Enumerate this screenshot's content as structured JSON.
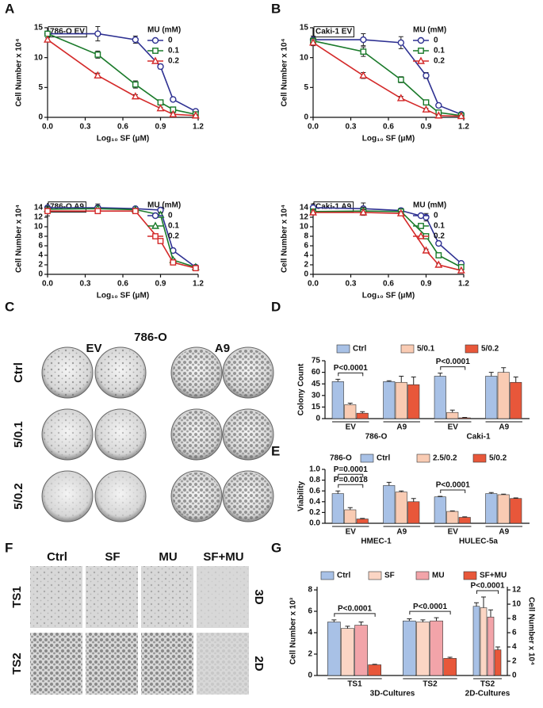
{
  "panel_labels": [
    "A",
    "B",
    "C",
    "D",
    "E",
    "F",
    "G"
  ],
  "panel_c": {
    "title": "786-O",
    "columns": [
      "EV",
      "A9"
    ],
    "rows": [
      "Ctrl",
      "5/0.1",
      "5/0.2"
    ]
  },
  "panel_f": {
    "columns": [
      "Ctrl",
      "SF",
      "MU",
      "SF+MU"
    ],
    "rows": [
      "TS1",
      "TS2"
    ],
    "row_notes": [
      "3D",
      "2D"
    ]
  },
  "chart_data": [
    {
      "type": "line",
      "title": "786-O EV",
      "xlabel": "Log₁₀ SF (μM)",
      "ylabel": "Cell Number x 10⁴",
      "x": [
        0,
        0.4,
        0.7,
        0.9,
        1,
        1.18
      ],
      "xlim": [
        0,
        1.2
      ],
      "xticks": [
        {
          "value": 0,
          "label": "0.0"
        },
        0.3,
        0.6,
        0.9,
        1.2
      ],
      "ylim": [
        0,
        15
      ],
      "yticks": [
        0,
        5,
        10,
        15
      ],
      "legend_title": "MU (mM)",
      "legend": "upper right",
      "series": [
        {
          "name": "0",
          "color": "#2e3192",
          "marker": "circle",
          "values": [
            14,
            14,
            13,
            8.5,
            3,
            1
          ],
          "errors": [
            0.4,
            1.2,
            0.6,
            0.4,
            0.2,
            0.3
          ]
        },
        {
          "name": "0.1",
          "color": "#1a7a2a",
          "marker": "square",
          "values": [
            14,
            10.5,
            5.5,
            2.5,
            1.3,
            0.5
          ],
          "errors": [
            0.3,
            0.6,
            0.6,
            0.3,
            0.2,
            0.2
          ]
        },
        {
          "name": "0.2",
          "color": "#d42a2a",
          "marker": "triangle",
          "values": [
            13,
            7,
            3.5,
            1.5,
            0.5,
            0.3
          ],
          "errors": [
            0.3,
            0.4,
            0.3,
            0.2,
            0.2,
            0.1
          ]
        }
      ]
    },
    {
      "type": "line",
      "title": "786-O A9",
      "xlabel": "Log₁₀ SF (μM)",
      "ylabel": "Cell Number x 10⁴",
      "x": [
        0,
        0.4,
        0.7,
        0.9,
        1,
        1.18
      ],
      "xlim": [
        0,
        1.2
      ],
      "xticks": [
        {
          "value": 0,
          "label": "0.0"
        },
        0.3,
        0.6,
        0.9,
        1.2
      ],
      "ylim": [
        0,
        15
      ],
      "yticks": [
        0,
        2,
        4,
        6,
        8,
        10,
        12,
        14
      ],
      "legend_title": "MU (mM)",
      "legend": "upper right",
      "series": [
        {
          "name": "0",
          "color": "#2e3192",
          "marker": "circle",
          "values": [
            14,
            14,
            13.8,
            13.5,
            5,
            1.5
          ],
          "errors": [
            0.3,
            0.8,
            0.4,
            0.6,
            0.4,
            0.3
          ]
        },
        {
          "name": "0.1",
          "color": "#1a7a2a",
          "marker": "triangle",
          "values": [
            13.7,
            13.8,
            13.6,
            12.5,
            3,
            1.5
          ],
          "errors": [
            0.3,
            0.6,
            0.3,
            0.5,
            0.3,
            0.2
          ]
        },
        {
          "name": "0.2",
          "color": "#d42a2a",
          "marker": "square",
          "values": [
            13.3,
            13.3,
            13.3,
            7,
            2.5,
            1.3
          ],
          "errors": [
            1,
            0.5,
            0.3,
            0.4,
            0.3,
            0.2
          ]
        }
      ]
    },
    {
      "type": "line",
      "title": "Caki-1 EV",
      "xlabel": "Log₁₀ SF (μM)",
      "ylabel": "Cell Number x 10⁴",
      "x": [
        0,
        0.4,
        0.7,
        0.9,
        1,
        1.18
      ],
      "xlim": [
        0,
        1.2
      ],
      "xticks": [
        {
          "value": 0,
          "label": "0.0"
        },
        0.3,
        0.6,
        0.9,
        1.2
      ],
      "ylim": [
        0,
        15
      ],
      "yticks": [
        0,
        5,
        10,
        15
      ],
      "legend_title": "MU (mM)",
      "legend": "upper right",
      "series": [
        {
          "name": "0",
          "color": "#2e3192",
          "marker": "circle",
          "values": [
            13,
            13,
            12.5,
            7,
            2,
            0.5
          ],
          "errors": [
            0.6,
            1,
            1,
            0.5,
            0.3,
            0.2
          ]
        },
        {
          "name": "0.1",
          "color": "#1a7a2a",
          "marker": "square",
          "values": [
            12.8,
            11,
            6.3,
            2.5,
            0.8,
            0.3
          ],
          "errors": [
            0.5,
            0.8,
            0.5,
            0.3,
            0.2,
            0.1
          ]
        },
        {
          "name": "0.2",
          "color": "#d42a2a",
          "marker": "triangle",
          "values": [
            12.5,
            7,
            3.2,
            1.3,
            0.3,
            0.2
          ],
          "errors": [
            0.5,
            0.5,
            0.3,
            0.2,
            0.1,
            0.1
          ]
        }
      ]
    },
    {
      "type": "line",
      "title": "Caki-1 A9",
      "xlabel": "Log₁₀ SF (μM)",
      "ylabel": "Cell Number x 10⁴",
      "x": [
        0,
        0.4,
        0.7,
        0.9,
        1,
        1.18
      ],
      "xlim": [
        0,
        1.2
      ],
      "xticks": [
        {
          "value": 0,
          "label": "0.0"
        },
        0.3,
        0.6,
        0.9,
        1.2
      ],
      "ylim": [
        0,
        15
      ],
      "yticks": [
        0,
        2,
        4,
        6,
        8,
        10,
        12,
        14
      ],
      "legend_title": "MU (mM)",
      "legend": "upper right",
      "series": [
        {
          "name": "0",
          "color": "#2e3192",
          "marker": "circle",
          "values": [
            14,
            13.8,
            13.4,
            12,
            6.5,
            2.3
          ],
          "errors": [
            0.8,
            1.2,
            0.5,
            0.8,
            0.4,
            0.3
          ]
        },
        {
          "name": "0.1",
          "color": "#1a7a2a",
          "marker": "square",
          "values": [
            13.2,
            13.3,
            13.2,
            8,
            4,
            1.5
          ],
          "errors": [
            0.5,
            0.8,
            0.4,
            0.4,
            0.3,
            0.2
          ]
        },
        {
          "name": "0.2",
          "color": "#d42a2a",
          "marker": "triangle",
          "values": [
            13,
            13,
            12.8,
            5,
            2,
            0.8
          ],
          "errors": [
            0.5,
            0.6,
            0.4,
            0.3,
            0.2,
            0.1
          ]
        }
      ]
    },
    {
      "type": "bar",
      "ylabel": "Colony Count",
      "categories": [
        "EV",
        "A9",
        "EV",
        "A9"
      ],
      "group_labels": [
        "786-O",
        "Caki-1"
      ],
      "ylim": [
        0,
        75
      ],
      "yticks": [
        0,
        15,
        30,
        45,
        60,
        75
      ],
      "legend": "top",
      "annotations": [
        "P<0.0001",
        "P<0.0001"
      ],
      "series": [
        {
          "name": "Ctrl",
          "color": "#a8c1e6",
          "values": [
            48,
            48,
            55,
            55
          ],
          "errors": [
            3,
            1,
            4,
            5
          ]
        },
        {
          "name": "5/0.1",
          "color": "#f9cbb3",
          "values": [
            18,
            47,
            8,
            60
          ],
          "errors": [
            2,
            8,
            3,
            6
          ]
        },
        {
          "name": "5/0.2",
          "color": "#e8573a",
          "values": [
            7,
            44,
            1,
            47
          ],
          "errors": [
            2,
            10,
            0.5,
            7
          ]
        }
      ]
    },
    {
      "type": "bar",
      "ylabel": "Viability",
      "note": "786-O",
      "categories": [
        "EV",
        "A9",
        "EV",
        "A9"
      ],
      "group_labels": [
        "HMEC-1",
        "HULEC-5a"
      ],
      "ylim": [
        0,
        1
      ],
      "yticks": [
        {
          "value": 0,
          "label": "0.0"
        },
        0.2,
        0.4,
        0.6,
        0.8,
        {
          "value": 1,
          "label": "1.0"
        }
      ],
      "legend": "top",
      "annotations": [
        "P=0.0018",
        "P=0.0001",
        "P<0.0001"
      ],
      "series": [
        {
          "name": "Ctrl",
          "color": "#a8c1e6",
          "values": [
            0.55,
            0.7,
            0.49,
            0.55
          ],
          "errors": [
            0.05,
            0.06,
            0.01,
            0.02
          ]
        },
        {
          "name": "2.5/0.2",
          "color": "#f9cbb3",
          "values": [
            0.25,
            0.58,
            0.22,
            0.53
          ],
          "errors": [
            0.04,
            0.02,
            0.01,
            0.01
          ]
        },
        {
          "name": "5/0.2",
          "color": "#e8573a",
          "values": [
            0.08,
            0.4,
            0.11,
            0.46
          ],
          "errors": [
            0.01,
            0.06,
            0.01,
            0.01
          ]
        }
      ]
    },
    {
      "type": "bar",
      "ylabel": "Cell Number x 10³",
      "categories": [
        "TS1",
        "TS2"
      ],
      "group_labels": [
        "3D-Cultures"
      ],
      "ylim": [
        0,
        8.3
      ],
      "yticks": [
        0,
        2,
        4,
        6,
        8
      ],
      "legend": "top",
      "annotations": [
        "P<0.0001",
        "P<0.0001"
      ],
      "series": [
        {
          "name": "Ctrl",
          "color": "#a8c1e6",
          "values": [
            5,
            5.1
          ],
          "errors": [
            0.2,
            0.2
          ]
        },
        {
          "name": "SF",
          "color": "#fbd5c4",
          "values": [
            4.4,
            5
          ],
          "errors": [
            0.2,
            0.2
          ]
        },
        {
          "name": "MU",
          "color": "#f2a4a9",
          "values": [
            4.7,
            5.1
          ],
          "errors": [
            0.3,
            0.3
          ]
        },
        {
          "name": "SF+MU",
          "color": "#e8573a",
          "values": [
            1,
            1.6
          ],
          "errors": [
            0.05,
            0.1
          ]
        }
      ]
    },
    {
      "type": "bar",
      "ylabel": "Cell Number x 10⁴",
      "yaxis": "right",
      "categories": [
        "TS2"
      ],
      "group_labels": [
        "2D-Cultures"
      ],
      "ylim": [
        0,
        12.45
      ],
      "yticks": [
        0,
        2,
        4,
        6,
        8,
        10,
        12
      ],
      "annotations": [
        "P<0.0001"
      ],
      "series": [
        {
          "color": "#a8c1e6",
          "values": [
            9.7
          ],
          "errors": [
            0.5
          ]
        },
        {
          "color": "#fbd5c4",
          "values": [
            9.5
          ],
          "errors": [
            1.5
          ]
        },
        {
          "color": "#f2a4a9",
          "values": [
            8.2
          ],
          "errors": [
            1
          ]
        },
        {
          "color": "#e8573a",
          "values": [
            3.6
          ],
          "errors": [
            0.4
          ]
        }
      ]
    }
  ]
}
